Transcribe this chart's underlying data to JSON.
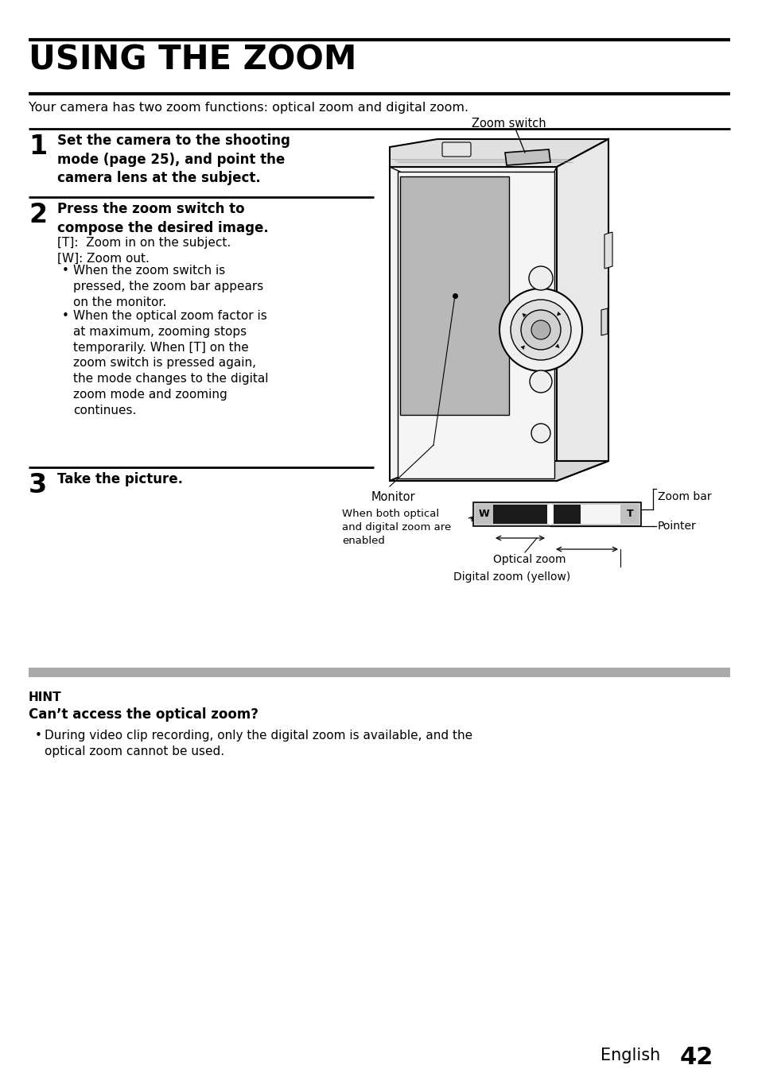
{
  "title": "USING THE ZOOM",
  "bg_color": "#ffffff",
  "intro_text": "Your camera has two zoom functions: optical zoom and digital zoom.",
  "step1_num": "1",
  "step1_text": "Set the camera to the shooting\nmode (page 25), and point the\ncamera lens at the subject.",
  "step2_num": "2",
  "step2_text_bold": "Press the zoom switch to\ncompose the desired image.",
  "step2_text": "[T]:  Zoom in on the subject.\n[W]: Zoom out.",
  "step2_bullets": [
    "When the zoom switch is\npressed, the zoom bar appears\non the monitor.",
    "When the optical zoom factor is\nat maximum, zooming stops\ntemporarily. When [T] on the\nzoom switch is pressed again,\nthe mode changes to the digital\nzoom mode and zooming\ncontinues."
  ],
  "step3_num": "3",
  "step3_text": "Take the picture.",
  "hint_title": "HINT",
  "hint_subtitle": "Can’t access the optical zoom?",
  "hint_text": "During video clip recording, only the digital zoom is available, and the\noptical zoom cannot be used.",
  "footer_text": "English",
  "footer_num": "42",
  "label_zoom_switch": "Zoom switch",
  "label_monitor": "Monitor",
  "label_zoom_bar": "Zoom bar",
  "label_pointer": "Pointer",
  "label_when_both": "When both optical\nand digital zoom are\nenabled",
  "label_optical_zoom": "Optical zoom",
  "label_digital_zoom": "Digital zoom (yellow)"
}
